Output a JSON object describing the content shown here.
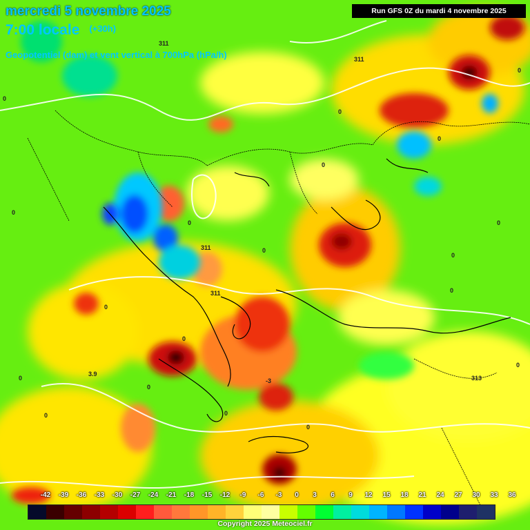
{
  "header": {
    "date_line": "mercredi 5 novembre 2025",
    "time_line": "7:00 locale",
    "lead_time": "(+30h)",
    "parameter": "Geopotentiel (dam) et vent vertical à 700hPa (hPa/h)",
    "run_info": "Run GFS 0Z du mardi 4 novembre 2025"
  },
  "legend": {
    "ticks": [
      "-42",
      "-39",
      "-36",
      "-33",
      "-30",
      "-27",
      "-24",
      "-21",
      "-18",
      "-15",
      "-12",
      "-9",
      "-6",
      "-3",
      "0",
      "3",
      "6",
      "9",
      "12",
      "15",
      "18",
      "21",
      "24",
      "27",
      "30",
      "33",
      "36"
    ],
    "colors": [
      "#050a2a",
      "#3a0000",
      "#650000",
      "#8c0000",
      "#b40000",
      "#dc0000",
      "#ff1e1e",
      "#ff5a3c",
      "#ff783c",
      "#ff9628",
      "#ffb428",
      "#ffd23c",
      "#ffff78",
      "#ffffa0",
      "#c8ff00",
      "#64ff00",
      "#00ff32",
      "#00f0a0",
      "#00dcdc",
      "#00b4ff",
      "#0078ff",
      "#0032ff",
      "#0000c8",
      "#00008c",
      "#1e1e6e",
      "#1e3264"
    ]
  },
  "map_labels": {
    "contour_311_north": "311",
    "contour_311_ne": "311",
    "contour_311_center": "311",
    "contour_311_center2": "311",
    "contour_313": "313",
    "contour_3_9": "3.9",
    "zero": "0",
    "neg3": "-3"
  },
  "colors": {
    "strong_ascent": "#d20000",
    "weak_motion_yellow": "#ffff00",
    "green_field": "#66ff00",
    "blue_descent": "#0050ff"
  },
  "footer": {
    "copyright": "Copyright 2025 Meteociel.fr"
  }
}
